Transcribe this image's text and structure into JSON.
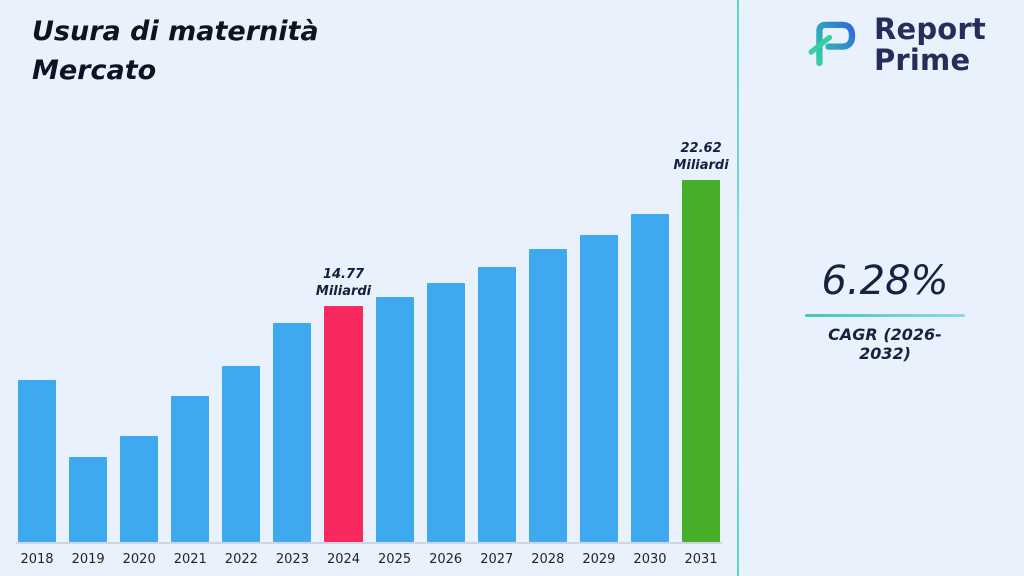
{
  "title": {
    "line1": "Usura di maternità",
    "line2": "Mercato"
  },
  "logo": {
    "line1": "Report",
    "line2": "Prime",
    "mark": "report-prime-logo"
  },
  "cagr": {
    "value": "6.28%",
    "label": "CAGR (2026-2032)"
  },
  "chart_data": {
    "type": "bar",
    "title": "Usura di maternità Mercato",
    "unit": "Miliardi",
    "categories": [
      "2018",
      "2019",
      "2020",
      "2021",
      "2022",
      "2023",
      "2024",
      "2025",
      "2026",
      "2027",
      "2028",
      "2029",
      "2030",
      "2031"
    ],
    "values": [
      10.1,
      5.3,
      6.6,
      9.1,
      11.0,
      13.7,
      14.77,
      15.3,
      16.2,
      17.2,
      18.3,
      19.2,
      20.5,
      22.62
    ],
    "ylim": [
      0,
      24
    ],
    "grid": false,
    "legend": false,
    "bar_color_default": "#3fa9f0",
    "annotations": [
      {
        "year": "2024",
        "value_label": "14.77",
        "unit_label": "Miliardi",
        "color": "#f8295f"
      },
      {
        "year": "2031",
        "value_label": "22.62",
        "unit_label": "Miliardi",
        "color": "#47ae29"
      }
    ]
  }
}
